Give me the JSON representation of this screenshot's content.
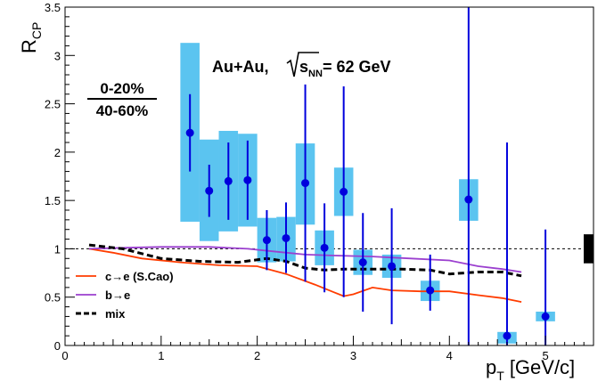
{
  "chart_data": {
    "type": "scatter",
    "collision": "Au+Au,",
    "energy_prefix": "s",
    "energy_sub": "NN",
    "energy_value": "= 62 GeV",
    "ratio_numerator": "0-20%",
    "ratio_denominator": "40-60%",
    "ylabel_main": "R",
    "ylabel_sub": "CP",
    "xlabel_main": "p",
    "xlabel_sub": "T",
    "xlabel_unit": "[GeV/c]",
    "xlim": [
      0,
      5.5
    ],
    "ylim": [
      0,
      3.5
    ],
    "x_ticks": [
      0,
      1,
      2,
      3,
      4,
      5
    ],
    "x_tick_labels": [
      "0",
      "1",
      "2",
      "3",
      "4",
      "5"
    ],
    "y_ticks": [
      0,
      0.5,
      1,
      1.5,
      2,
      2.5,
      3,
      3.5
    ],
    "y_tick_labels": [
      "0",
      "0.5",
      "1",
      "1.5",
      "2",
      "2.5",
      "3",
      "3.5"
    ],
    "reference_line_y": 1,
    "normalization_box": {
      "y_low": 0.85,
      "y_high": 1.15,
      "color": "#000000"
    },
    "data_series": {
      "marker_color": "#0000dd",
      "sys_color": "#5bc4f0",
      "points": [
        {
          "x": 1.3,
          "y": 2.2,
          "stat_low": 1.8,
          "stat_high": 2.6,
          "sys_low": 1.28,
          "sys_high": 3.13
        },
        {
          "x": 1.5,
          "y": 1.6,
          "stat_low": 1.33,
          "stat_high": 1.87,
          "sys_low": 1.08,
          "sys_high": 2.13
        },
        {
          "x": 1.7,
          "y": 1.7,
          "stat_low": 1.3,
          "stat_high": 2.1,
          "sys_low": 1.18,
          "sys_high": 2.22
        },
        {
          "x": 1.9,
          "y": 1.71,
          "stat_low": 1.3,
          "stat_high": 2.12,
          "sys_low": 1.23,
          "sys_high": 2.19
        },
        {
          "x": 2.1,
          "y": 1.09,
          "stat_low": 0.78,
          "stat_high": 1.4,
          "sys_low": 0.86,
          "sys_high": 1.32
        },
        {
          "x": 2.3,
          "y": 1.11,
          "stat_low": 0.75,
          "stat_high": 1.48,
          "sys_low": 0.87,
          "sys_high": 1.33
        },
        {
          "x": 2.5,
          "y": 1.68,
          "stat_low": 0.66,
          "stat_high": 2.7,
          "sys_low": 1.25,
          "sys_high": 2.09
        },
        {
          "x": 2.7,
          "y": 1.01,
          "stat_low": 0.55,
          "stat_high": 1.47,
          "sys_low": 0.83,
          "sys_high": 1.19
        },
        {
          "x": 2.9,
          "y": 1.59,
          "stat_low": 0.5,
          "stat_high": 2.68,
          "sys_low": 1.34,
          "sys_high": 1.84
        },
        {
          "x": 3.1,
          "y": 0.86,
          "stat_low": 0.35,
          "stat_high": 1.37,
          "sys_low": 0.73,
          "sys_high": 0.99
        },
        {
          "x": 3.4,
          "y": 0.82,
          "stat_low": 0.22,
          "stat_high": 1.42,
          "sys_low": 0.7,
          "sys_high": 0.94
        },
        {
          "x": 3.8,
          "y": 0.57,
          "stat_low": 0.36,
          "stat_high": 0.94,
          "sys_low": 0.46,
          "sys_high": 0.67
        },
        {
          "x": 4.2,
          "y": 1.51,
          "stat_low": 0.0,
          "stat_high": 3.5,
          "sys_low": 1.29,
          "sys_high": 1.72
        },
        {
          "x": 4.6,
          "y": 0.1,
          "stat_low": 0.0,
          "stat_high": 2.1,
          "sys_low": 0.02,
          "sys_high": 0.14
        },
        {
          "x": 5.0,
          "y": 0.3,
          "stat_low": 0.0,
          "stat_high": 1.2,
          "sys_low": 0.25,
          "sys_high": 0.35
        }
      ]
    },
    "curves": [
      {
        "name": "c→e (S.Cao)",
        "color": "#ff3c00",
        "dash": "solid",
        "x": [
          0.25,
          0.5,
          0.8,
          1.2,
          1.6,
          2.0,
          2.3,
          2.6,
          2.8,
          2.9,
          3.0,
          3.2,
          3.4,
          3.7,
          4.0,
          4.3,
          4.55,
          4.75
        ],
        "y": [
          1.0,
          0.96,
          0.9,
          0.86,
          0.83,
          0.82,
          0.74,
          0.63,
          0.55,
          0.51,
          0.53,
          0.6,
          0.57,
          0.56,
          0.56,
          0.52,
          0.49,
          0.45
        ]
      },
      {
        "name": "b→e",
        "color": "#9b3fcf",
        "dash": "solid",
        "x": [
          0.25,
          0.6,
          1.0,
          1.5,
          1.9,
          2.2,
          2.5,
          2.8,
          3.2,
          3.6,
          4.0,
          4.3,
          4.55,
          4.75
        ],
        "y": [
          1.0,
          1.01,
          1.02,
          1.02,
          1.0,
          0.97,
          0.94,
          0.93,
          0.92,
          0.9,
          0.88,
          0.82,
          0.79,
          0.76
        ]
      },
      {
        "name": "mix",
        "color": "#000000",
        "dash": "dashed",
        "x": [
          0.25,
          0.6,
          1.0,
          1.4,
          1.8,
          2.1,
          2.3,
          2.5,
          2.7,
          2.9,
          3.2,
          3.5,
          3.8,
          4.0,
          4.3,
          4.55,
          4.75
        ],
        "y": [
          1.04,
          1.0,
          0.9,
          0.87,
          0.86,
          0.9,
          0.87,
          0.8,
          0.78,
          0.79,
          0.79,
          0.79,
          0.78,
          0.74,
          0.76,
          0.76,
          0.72
        ]
      }
    ],
    "legend_position": "bottom-left"
  }
}
